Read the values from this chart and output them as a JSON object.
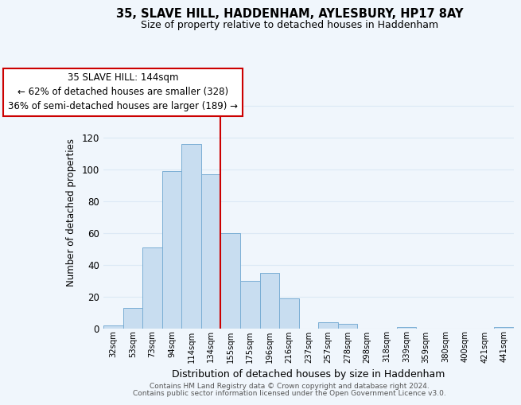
{
  "title": "35, SLAVE HILL, HADDENHAM, AYLESBURY, HP17 8AY",
  "subtitle": "Size of property relative to detached houses in Haddenham",
  "xlabel": "Distribution of detached houses by size in Haddenham",
  "ylabel": "Number of detached properties",
  "bar_labels": [
    "32sqm",
    "53sqm",
    "73sqm",
    "94sqm",
    "114sqm",
    "134sqm",
    "155sqm",
    "175sqm",
    "196sqm",
    "216sqm",
    "237sqm",
    "257sqm",
    "278sqm",
    "298sqm",
    "318sqm",
    "339sqm",
    "359sqm",
    "380sqm",
    "400sqm",
    "421sqm",
    "441sqm"
  ],
  "bar_values": [
    2,
    13,
    51,
    99,
    116,
    97,
    60,
    30,
    35,
    19,
    0,
    4,
    3,
    0,
    0,
    1,
    0,
    0,
    0,
    0,
    1
  ],
  "bar_color": "#c8ddf0",
  "bar_edge_color": "#7aaed4",
  "vline_color": "#cc0000",
  "ylim": [
    0,
    145
  ],
  "yticks": [
    0,
    20,
    40,
    60,
    80,
    100,
    120,
    140
  ],
  "annotation_title": "35 SLAVE HILL: 144sqm",
  "annotation_line1": "← 62% of detached houses are smaller (328)",
  "annotation_line2": "36% of semi-detached houses are larger (189) →",
  "annotation_box_color": "#ffffff",
  "annotation_box_edge": "#cc0000",
  "footer1": "Contains HM Land Registry data © Crown copyright and database right 2024.",
  "footer2": "Contains public sector information licensed under the Open Government Licence v3.0.",
  "grid_color": "#dce9f5",
  "background_color": "#f0f6fc"
}
